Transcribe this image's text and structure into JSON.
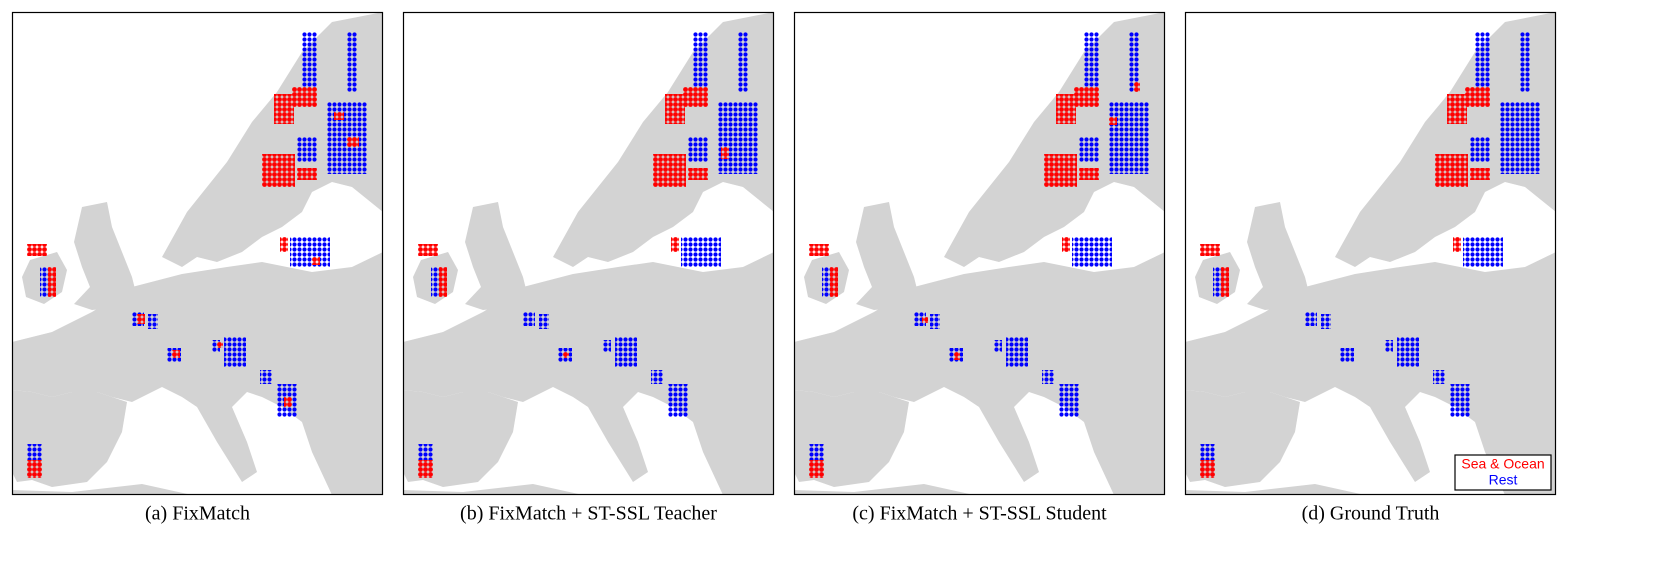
{
  "panels": [
    {
      "caption": "(a) FixMatch"
    },
    {
      "caption": "(b) FixMatch + ST-SSL Teacher"
    },
    {
      "caption": "(c) FixMatch + ST-SSL Student"
    },
    {
      "caption": "(d) Ground Truth"
    }
  ],
  "legend": [
    {
      "label": "Sea & Ocean",
      "color": "#ff0000"
    },
    {
      "label": "Rest",
      "color": "#0000ff"
    }
  ]
}
